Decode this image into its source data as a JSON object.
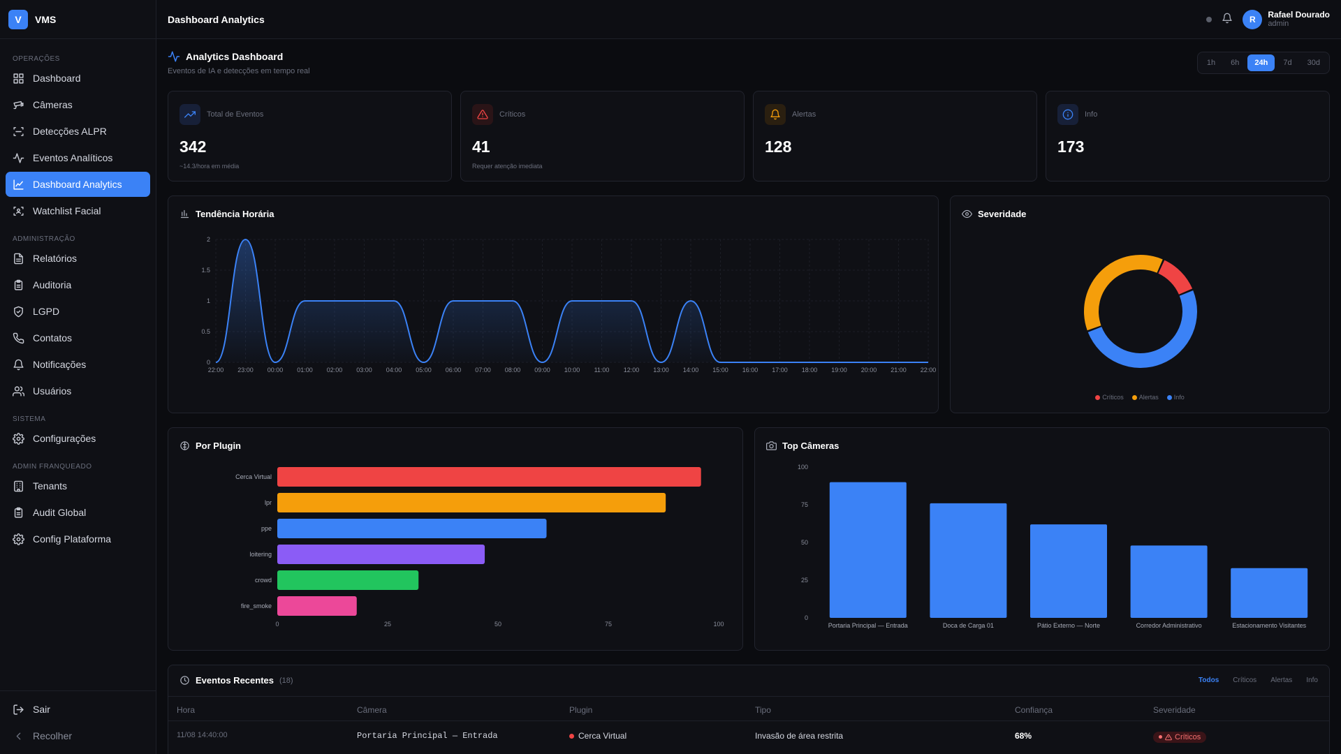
{
  "app": {
    "logo_letter": "V",
    "name": "VMS"
  },
  "sidebar": {
    "sections": [
      {
        "label": "OPERAÇÕES",
        "items": [
          "Dashboard",
          "Câmeras",
          "Detecções ALPR",
          "Eventos Analíticos",
          "Dashboard Analytics",
          "Watchlist Facial"
        ]
      },
      {
        "label": "ADMINISTRAÇÃO",
        "items": [
          "Relatórios",
          "Auditoria",
          "LGPD",
          "Contatos",
          "Notificações",
          "Usuários"
        ]
      },
      {
        "label": "SISTEMA",
        "items": [
          "Configurações"
        ]
      },
      {
        "label": "ADMIN FRANQUEADO",
        "items": [
          "Tenants",
          "Audit Global",
          "Config Plataforma"
        ]
      }
    ],
    "active_item": "Dashboard Analytics",
    "bottom": {
      "logout": "Sair",
      "collapse": "Recolher"
    }
  },
  "topbar": {
    "title": "Dashboard Analytics",
    "user_initial": "R",
    "user_name": "Rafael Dourado",
    "user_role": "admin"
  },
  "page": {
    "title": "Analytics Dashboard",
    "subtitle": "Eventos de IA e detecções em tempo real",
    "ranges": [
      "1h",
      "6h",
      "24h",
      "7d",
      "30d"
    ],
    "active_range": "24h"
  },
  "stats": [
    {
      "label": "Total de Eventos",
      "value": "342",
      "sub": "~14.3/hora em média",
      "icon": "trending-up-icon",
      "color": "#3b82f6",
      "bg": "#172038"
    },
    {
      "label": "Críticos",
      "value": "41",
      "sub": "Requer atenção imediata",
      "icon": "alert-triangle-icon",
      "color": "#ef4444",
      "bg": "#2a1417"
    },
    {
      "label": "Alertas",
      "value": "128",
      "sub": "",
      "icon": "bell-icon",
      "color": "#f59e0b",
      "bg": "#2a1f10"
    },
    {
      "label": "Info",
      "value": "173",
      "sub": "",
      "icon": "info-icon",
      "color": "#3b82f6",
      "bg": "#172038"
    }
  ],
  "trend": {
    "title": "Tendência Horária",
    "chart_data": {
      "type": "area",
      "x": [
        "22:00",
        "23:00",
        "00:00",
        "01:00",
        "02:00",
        "03:00",
        "04:00",
        "05:00",
        "06:00",
        "07:00",
        "08:00",
        "09:00",
        "10:00",
        "11:00",
        "12:00",
        "13:00",
        "14:00",
        "15:00",
        "16:00",
        "17:00",
        "18:00",
        "19:00",
        "20:00",
        "21:00",
        "22:00"
      ],
      "values": [
        0,
        2,
        0,
        1,
        1,
        1,
        1,
        0,
        1,
        1,
        1,
        0,
        1,
        1,
        1,
        0,
        1,
        0,
        0,
        0,
        0,
        0,
        0,
        0,
        0
      ],
      "yticks": [
        "0",
        "0.5",
        "1",
        "1.5",
        "2"
      ],
      "ylim": [
        0,
        2
      ],
      "color": "#3b82f6",
      "grid": true
    }
  },
  "severity": {
    "title": "Severidade",
    "chart_data": {
      "type": "pie",
      "slices": [
        {
          "name": "Críticos",
          "value": 41,
          "color": "#ef4444"
        },
        {
          "name": "Alertas",
          "value": 128,
          "color": "#f59e0b"
        },
        {
          "name": "Info",
          "value": 173,
          "color": "#3b82f6"
        }
      ],
      "legend": "bottom"
    }
  },
  "plugins": {
    "title": "Por Plugin",
    "chart_data": {
      "type": "bar",
      "orientation": "horizontal",
      "categories": [
        "Cerca Virtual",
        "lpr",
        "ppe",
        "loitering",
        "crowd",
        "fire_smoke"
      ],
      "values": [
        96,
        88,
        61,
        47,
        32,
        18
      ],
      "colors": [
        "#ef4444",
        "#f59e0b",
        "#3b82f6",
        "#8b5cf6",
        "#22c55e",
        "#ec4899"
      ],
      "xticks": [
        "0",
        "25",
        "50",
        "75",
        "100"
      ],
      "xlim": [
        0,
        100
      ]
    }
  },
  "cameras": {
    "title": "Top Câmeras",
    "chart_data": {
      "type": "bar",
      "categories": [
        "Portaria Principal — Entrada",
        "Doca de Carga 01",
        "Pátio Externo — Norte",
        "Corredor Administrativo",
        "Estacionamento Visitantes"
      ],
      "values": [
        90,
        76,
        62,
        48,
        33
      ],
      "color": "#3b82f6",
      "yticks": [
        "0",
        "25",
        "50",
        "75",
        "100"
      ],
      "ylim": [
        0,
        100
      ]
    }
  },
  "events": {
    "title": "Eventos Recentes",
    "count": "(18)",
    "filters": [
      "Todos",
      "Críticos",
      "Alertas",
      "Info"
    ],
    "active_filter": "Todos",
    "columns": [
      "Hora",
      "Câmera",
      "Plugin",
      "Tipo",
      "Confiança",
      "Severidade"
    ],
    "rows": [
      {
        "time": "11/08 14:40:00",
        "camera": "Portaria Principal — Entrada",
        "plugin": "Cerca Virtual",
        "type": "Invasão de área restrita",
        "confidence": "68%",
        "severity": "Críticos"
      }
    ]
  }
}
